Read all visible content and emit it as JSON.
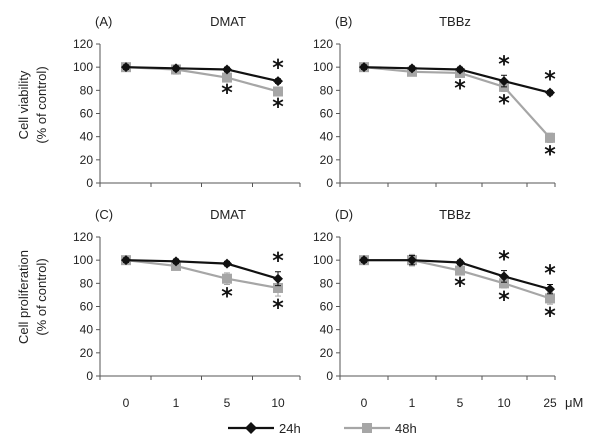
{
  "figure": {
    "xunit": "μM",
    "ylabels": [
      {
        "line1": "Cell viability",
        "line2": "(% of control)"
      },
      {
        "line1": "Cell proliferation",
        "line2": "(% of control)"
      }
    ],
    "legend": [
      {
        "name": "24h",
        "color": "#111111",
        "marker": "diamond"
      },
      {
        "name": "48h",
        "color": "#a6a6a6",
        "marker": "square"
      }
    ]
  },
  "chart_data": [
    {
      "type": "line",
      "label": "(A)",
      "title": "DMAT",
      "ylabel": "Cell viability (% of control)",
      "ylim": [
        0,
        120
      ],
      "yticks": [
        0,
        20,
        40,
        60,
        80,
        100,
        120
      ],
      "categories": [
        "0",
        "1",
        "5",
        "10"
      ],
      "series": [
        {
          "name": "24h",
          "values": [
            100,
            99,
            98,
            88
          ],
          "errors": [
            2,
            2,
            2,
            2
          ]
        },
        {
          "name": "48h",
          "values": [
            100,
            98,
            91,
            79
          ],
          "errors": [
            2,
            4,
            3,
            3
          ]
        }
      ],
      "significance": [
        {
          "series": "24h",
          "category": "10",
          "label": "*",
          "position": "above"
        },
        {
          "series": "48h",
          "category": "5",
          "label": "*",
          "position": "below"
        },
        {
          "series": "48h",
          "category": "10",
          "label": "*",
          "position": "below"
        }
      ]
    },
    {
      "type": "line",
      "label": "(B)",
      "title": "TBBz",
      "ylabel": "Cell viability (% of control)",
      "ylim": [
        0,
        120
      ],
      "yticks": [
        0,
        20,
        40,
        60,
        80,
        100,
        120
      ],
      "categories": [
        "0",
        "1",
        "5",
        "10",
        "25"
      ],
      "series": [
        {
          "name": "24h",
          "values": [
            100,
            99,
            98,
            88,
            78
          ],
          "errors": [
            2,
            2,
            2,
            5,
            2
          ]
        },
        {
          "name": "48h",
          "values": [
            100,
            96,
            95,
            83,
            39
          ],
          "errors": [
            2,
            2,
            3,
            4,
            4
          ]
        }
      ],
      "significance": [
        {
          "series": "24h",
          "category": "10",
          "label": "*",
          "position": "above"
        },
        {
          "series": "24h",
          "category": "25",
          "label": "*",
          "position": "above"
        },
        {
          "series": "48h",
          "category": "5",
          "label": "*",
          "position": "below"
        },
        {
          "series": "48h",
          "category": "10",
          "label": "*",
          "position": "below"
        },
        {
          "series": "48h",
          "category": "25",
          "label": "*",
          "position": "below"
        }
      ]
    },
    {
      "type": "line",
      "label": "(C)",
      "title": "DMAT",
      "ylabel": "Cell proliferation (% of control)",
      "ylim": [
        0,
        120
      ],
      "yticks": [
        0,
        20,
        40,
        60,
        80,
        100,
        120
      ],
      "categories": [
        "0",
        "1",
        "5",
        "10"
      ],
      "series": [
        {
          "name": "24h",
          "values": [
            100,
            99,
            97,
            84
          ],
          "errors": [
            2,
            2,
            2,
            6
          ]
        },
        {
          "name": "48h",
          "values": [
            100,
            95,
            84,
            76
          ],
          "errors": [
            2,
            3,
            5,
            7
          ]
        }
      ],
      "significance": [
        {
          "series": "24h",
          "category": "10",
          "label": "*",
          "position": "above"
        },
        {
          "series": "48h",
          "category": "5",
          "label": "*",
          "position": "below"
        },
        {
          "series": "48h",
          "category": "10",
          "label": "*",
          "position": "below"
        }
      ]
    },
    {
      "type": "line",
      "label": "(D)",
      "title": "TBBz",
      "ylabel": "Cell proliferation (% of control)",
      "ylim": [
        0,
        120
      ],
      "yticks": [
        0,
        20,
        40,
        60,
        80,
        100,
        120
      ],
      "categories": [
        "0",
        "1",
        "5",
        "10",
        "25"
      ],
      "series": [
        {
          "name": "24h",
          "values": [
            100,
            100,
            98,
            86,
            75
          ],
          "errors": [
            2,
            4,
            2,
            5,
            4
          ]
        },
        {
          "name": "48h",
          "values": [
            100,
            100,
            91,
            80,
            67
          ],
          "errors": [
            2,
            5,
            3,
            4,
            5
          ]
        }
      ],
      "significance": [
        {
          "series": "24h",
          "category": "10",
          "label": "*",
          "position": "above"
        },
        {
          "series": "24h",
          "category": "25",
          "label": "*",
          "position": "above"
        },
        {
          "series": "48h",
          "category": "5",
          "label": "*",
          "position": "below"
        },
        {
          "series": "48h",
          "category": "10",
          "label": "*",
          "position": "below"
        },
        {
          "series": "48h",
          "category": "25",
          "label": "*",
          "position": "below"
        }
      ]
    }
  ]
}
